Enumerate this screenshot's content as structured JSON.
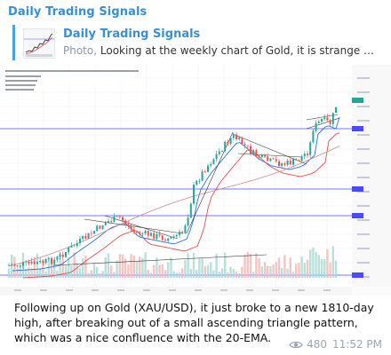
{
  "channel": {
    "name": "Daily Trading Signals"
  },
  "reply": {
    "title": "Daily Trading Signals",
    "kind": "Photo,",
    "text": "Looking at the weekly chart of Gold, it is strange b..."
  },
  "caption": "Following up on Gold (XAU/USD), it just broke to a new 1810-day high, after breaking out of a small ascending triangle pattern, which was a nice confluence with the 20-EMA.",
  "meta": {
    "views": "480",
    "time": "11:52 PM"
  },
  "colors": {
    "accent": "#3a8fcf",
    "hline": "#4a4aff",
    "ema": "#e05050",
    "candle_up": "#26a69a",
    "candle_down": "#ef5350"
  },
  "icons": {
    "views": "eye-icon"
  }
}
